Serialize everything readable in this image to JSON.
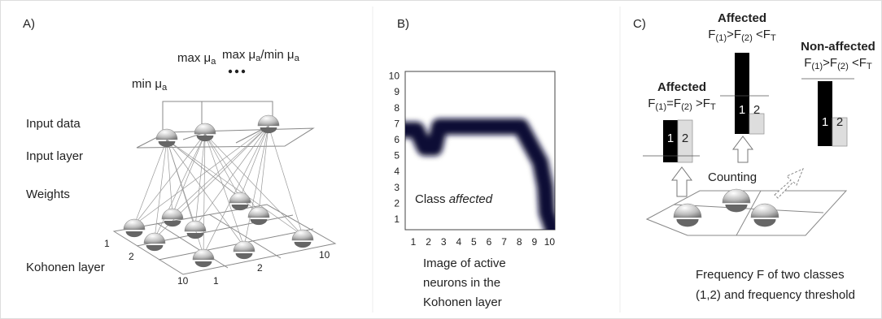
{
  "panel_a": {
    "label": "A)",
    "min_label": [
      "min μ",
      "a"
    ],
    "max_label": [
      "max μ",
      "a"
    ],
    "ratio_label": [
      "max μ",
      "a",
      "/min μ",
      "a"
    ],
    "input_data": "Input data",
    "input_layer": "Input layer",
    "weights": "Weights",
    "kohonen_layer": "Kohonen layer",
    "grid_labels": [
      "1",
      "2",
      "10",
      "1",
      "2",
      "10"
    ]
  },
  "panel_b": {
    "label": "B)",
    "y_labels": [
      "1",
      "2",
      "3",
      "4",
      "5",
      "6",
      "7",
      "8",
      "9",
      "10"
    ],
    "x_labels": [
      "1",
      "2",
      "3",
      "4",
      "5",
      "6",
      "7",
      "8",
      "9",
      "10"
    ],
    "class_label": [
      "Class ",
      "affected"
    ],
    "caption": [
      "Image of active",
      "neurons in the",
      "Kohonen layer"
    ]
  },
  "panel_c": {
    "label": "C)",
    "groups": [
      {
        "title": "Affected",
        "formula": [
          "F",
          "(1)",
          "=F",
          "(2)",
          " >F",
          "T"
        ],
        "bars": [
          "1",
          "2"
        ]
      },
      {
        "title": "Affected",
        "formula": [
          "F",
          "(1)",
          ">F",
          "(2)",
          " <F",
          "T"
        ],
        "bars": [
          "1",
          "2"
        ]
      },
      {
        "title": "Non-affected",
        "formula": [
          "F",
          "(1)",
          ">F",
          "(2)",
          " <F",
          "T"
        ],
        "bars": [
          "1",
          "2"
        ]
      }
    ],
    "counting": "Counting",
    "caption": [
      "Frequency F of two classes",
      "(1,2) and frequency threshold"
    ]
  }
}
